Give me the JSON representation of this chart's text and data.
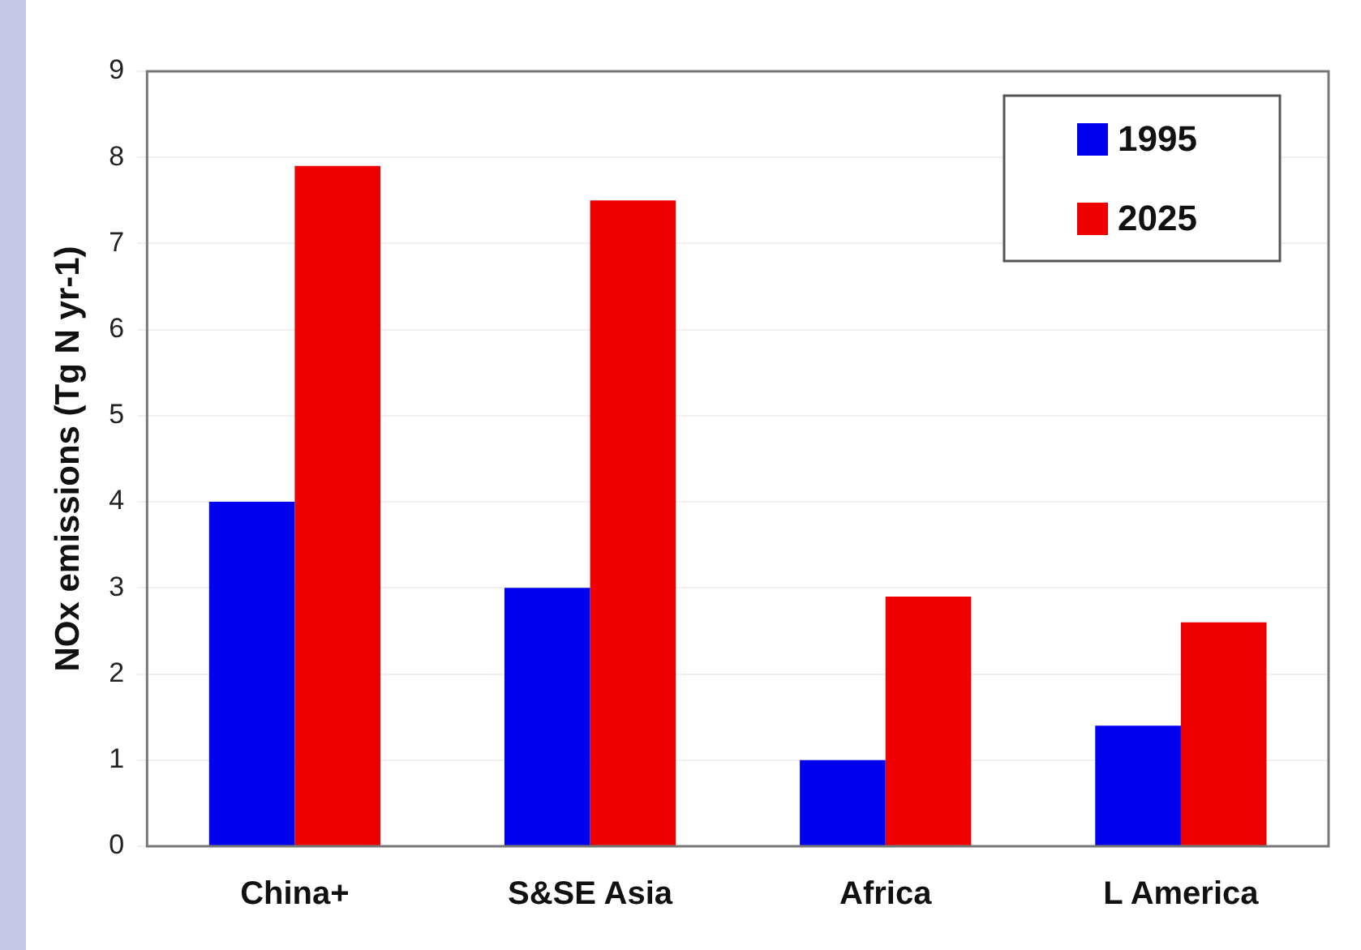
{
  "chart_data": {
    "type": "bar",
    "ylabel": "NOx emissions (Tg N yr-1)",
    "categories": [
      "China+",
      "S&SE Asia",
      "Africa",
      "L America"
    ],
    "series": [
      {
        "name": "1995",
        "color": "#0000ee",
        "values": [
          4.0,
          3.0,
          1.0,
          1.4
        ]
      },
      {
        "name": "2025",
        "color": "#ee0000",
        "values": [
          7.9,
          7.5,
          2.9,
          2.6
        ]
      }
    ],
    "ylim": [
      0,
      9
    ],
    "yticks": [
      0,
      1,
      2,
      3,
      4,
      5,
      6,
      7,
      8,
      9
    ],
    "grid": "y",
    "legend": "top right"
  }
}
